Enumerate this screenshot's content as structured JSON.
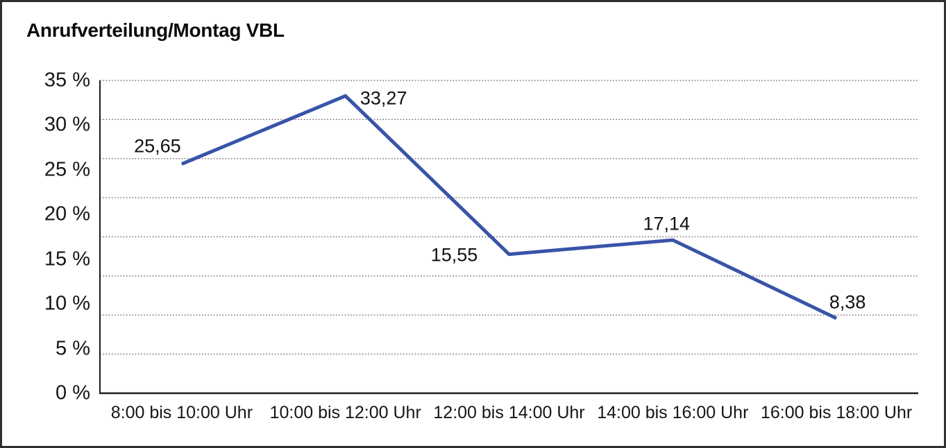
{
  "frame": {
    "title": "Anrufverteilung/Montag VBL"
  },
  "chart_data": {
    "type": "line",
    "title": "Anrufverteilung/Montag VBL",
    "categories": [
      "8:00 bis 10:00 Uhr",
      "10:00 bis 12:00 Uhr",
      "12:00 bis 14:00 Uhr",
      "14:00 bis 16:00 Uhr",
      "16:00 bis 18:00 Uhr"
    ],
    "values": [
      25.65,
      33.27,
      15.55,
      17.14,
      8.38
    ],
    "point_labels": [
      "25,65",
      "33,27",
      "15,55",
      "17,14",
      "8,38"
    ],
    "y_tick_labels": [
      "35 %",
      "30 %",
      "25 %",
      "20 %",
      "15 %",
      "10 %",
      "5 %",
      "0 %"
    ],
    "ylim": [
      0,
      35
    ],
    "grid": "horizontal dotted",
    "legend": "none",
    "line_color": "#3854A8"
  }
}
